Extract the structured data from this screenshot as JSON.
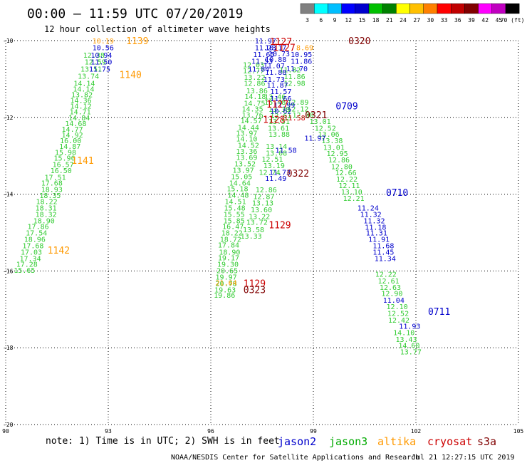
{
  "header": {
    "title": "00:00 – 11:59 UTC 07/20/2019",
    "subtitle": "12 hour collection of altimeter wave heights"
  },
  "color_scale": {
    "ticks": [
      "3",
      "6",
      "9",
      "12",
      "15",
      "18",
      "21",
      "24",
      "27",
      "30",
      "33",
      "36",
      "39",
      "42",
      "45",
      "70 (ft)"
    ],
    "colors": [
      "#808080",
      "#00ffff",
      "#00bfff",
      "#0000ff",
      "#0000cd",
      "#00c000",
      "#008000",
      "#ffff00",
      "#ffc000",
      "#ff8000",
      "#ff0000",
      "#c00000",
      "#800000",
      "#ff00ff",
      "#c000c0",
      "#000000"
    ]
  },
  "footer": {
    "note": "note: 1) Time is in UTC; 2) SWH is in feet",
    "satellites": [
      {
        "name": "jason2",
        "color": "#0000cc"
      },
      {
        "name": "jason3",
        "color": "#00aa00"
      },
      {
        "name": "altika",
        "color": "#ff9900"
      },
      {
        "name": "cryosat",
        "color": "#cc0000"
      },
      {
        "name": "s3a",
        "color": "#800000"
      }
    ],
    "credit": "NOAA/NESDIS Center for Satellite Applications and Research",
    "timestamp": "Jul 21 12:27:15 UTC 2019"
  },
  "chart_data": {
    "type": "scatter",
    "title": "00:00 – 11:59 UTC 07/20/2019",
    "subtitle": "12 hour collection of altimeter wave heights",
    "xlim": [
      90,
      105
    ],
    "ylim": [
      -20,
      -10
    ],
    "x_ticks": [
      "90",
      "93",
      "96",
      "99",
      "102",
      "105"
    ],
    "y_ticks": [
      "-10",
      "-12",
      "-14",
      "-16",
      "-18",
      "-20"
    ],
    "grid": true,
    "legend_position": "bottom",
    "series": [
      {
        "name": "jason3",
        "color": "#33cc33",
        "points": [
          [
            92.58,
            -10.37,
            "12.38"
          ],
          [
            92.62,
            -10.55,
            "12.59"
          ],
          [
            92.5,
            -10.73,
            "13.51"
          ],
          [
            92.42,
            -10.92,
            "13.74"
          ],
          [
            92.3,
            -11.1,
            "14.14"
          ],
          [
            92.28,
            -11.25,
            "14.14"
          ],
          [
            92.23,
            -11.4,
            "13.82"
          ],
          [
            92.2,
            -11.55,
            "14.36"
          ],
          [
            92.2,
            -11.7,
            "14.12"
          ],
          [
            92.18,
            -11.85,
            "14.71"
          ],
          [
            92.15,
            -12.0,
            "14.84"
          ],
          [
            92.05,
            -12.15,
            "14.68"
          ],
          [
            91.95,
            -12.3,
            "14.77"
          ],
          [
            91.95,
            -12.45,
            "14.92"
          ],
          [
            91.9,
            -12.6,
            "16.00"
          ],
          [
            91.88,
            -12.75,
            "14.87"
          ],
          [
            91.75,
            -12.9,
            "15.98"
          ],
          [
            91.72,
            -13.05,
            "15.90"
          ],
          [
            91.68,
            -13.22,
            "16.57"
          ],
          [
            91.62,
            -13.38,
            "16.50"
          ],
          [
            91.45,
            -13.55,
            "17.51"
          ],
          [
            91.35,
            -13.7,
            "17.68"
          ],
          [
            91.35,
            -13.87,
            "18.93"
          ],
          [
            91.3,
            -14.03,
            "18.35"
          ],
          [
            91.2,
            -14.18,
            "18.22"
          ],
          [
            91.18,
            -14.35,
            "18.31"
          ],
          [
            91.18,
            -14.52,
            "18.32"
          ],
          [
            91.12,
            -14.68,
            "18.90"
          ],
          [
            90.95,
            -14.83,
            "17.86"
          ],
          [
            90.9,
            -15.0,
            "17.54"
          ],
          [
            90.85,
            -15.17,
            "18.96"
          ],
          [
            90.8,
            -15.33,
            "17.68"
          ],
          [
            90.75,
            -15.5,
            "17.03"
          ],
          [
            90.72,
            -15.67,
            "17.34"
          ],
          [
            90.62,
            -15.82,
            "17.28"
          ],
          [
            90.55,
            -15.97,
            "15.65"
          ],
          [
            97.25,
            -10.62,
            "12.03"
          ],
          [
            97.25,
            -10.78,
            "12.77"
          ],
          [
            97.28,
            -10.95,
            "13.22"
          ],
          [
            97.28,
            -11.1,
            "12.86"
          ],
          [
            97.35,
            -11.3,
            "13.86"
          ],
          [
            97.3,
            -11.45,
            "14.18"
          ],
          [
            97.28,
            -11.62,
            "14.75"
          ],
          [
            97.22,
            -11.77,
            "14.35"
          ],
          [
            97.22,
            -11.93,
            "13.76"
          ],
          [
            97.18,
            -12.08,
            "14.57"
          ],
          [
            97.1,
            -12.25,
            "14.44"
          ],
          [
            97.05,
            -12.4,
            "13.97"
          ],
          [
            97.05,
            -12.55,
            "14.10"
          ],
          [
            97.1,
            -12.72,
            "14.52"
          ],
          [
            97.05,
            -12.88,
            "13.36"
          ],
          [
            97.05,
            -13.03,
            "13.69"
          ],
          [
            97.0,
            -13.2,
            "13.52"
          ],
          [
            96.95,
            -13.37,
            "13.97"
          ],
          [
            96.9,
            -13.53,
            "15.05"
          ],
          [
            96.85,
            -13.7,
            "14.64"
          ],
          [
            96.78,
            -13.85,
            "15.18"
          ],
          [
            96.8,
            -14.02,
            "14.48"
          ],
          [
            96.72,
            -14.18,
            "14.51"
          ],
          [
            96.7,
            -14.35,
            "15.48"
          ],
          [
            96.68,
            -14.52,
            "15.55"
          ],
          [
            96.68,
            -14.68,
            "15.85"
          ],
          [
            96.65,
            -14.83,
            "16.47"
          ],
          [
            96.62,
            -15.0,
            "18.22"
          ],
          [
            96.58,
            -15.17,
            "18.72"
          ],
          [
            96.52,
            -15.32,
            "17.84"
          ],
          [
            96.55,
            -15.5,
            "18.90"
          ],
          [
            96.52,
            -15.65,
            "19.17"
          ],
          [
            96.5,
            -15.82,
            "19.30"
          ],
          [
            96.48,
            -15.98,
            "20.65"
          ],
          [
            96.45,
            -16.15,
            "19.97"
          ],
          [
            96.45,
            -16.32,
            "20.78"
          ],
          [
            96.42,
            -16.48,
            "19.63"
          ],
          [
            96.4,
            -16.62,
            "19.86"
          ],
          [
            97.88,
            -11.46,
            "13.46"
          ],
          [
            97.88,
            -11.6,
            "15.48"
          ],
          [
            98.0,
            -11.78,
            "13.38"
          ],
          [
            98.05,
            -11.95,
            "12.61"
          ],
          [
            98.0,
            -12.1,
            "13.51"
          ],
          [
            97.98,
            -12.27,
            "13.61"
          ],
          [
            98.0,
            -12.43,
            "13.88"
          ],
          [
            97.92,
            -12.75,
            "13.14"
          ],
          [
            97.92,
            -12.92,
            "13.08"
          ],
          [
            97.8,
            -13.08,
            "12.51"
          ],
          [
            97.85,
            -13.25,
            "13.19"
          ],
          [
            97.72,
            -13.42,
            "12.74"
          ],
          [
            97.62,
            -13.88,
            "12.86"
          ],
          [
            97.55,
            -14.05,
            "12.87"
          ],
          [
            97.52,
            -14.22,
            "13.13"
          ],
          [
            97.48,
            -14.4,
            "13.60"
          ],
          [
            97.42,
            -14.57,
            "13.22"
          ],
          [
            97.35,
            -14.72,
            "13.72"
          ],
          [
            97.25,
            -14.92,
            "13.58"
          ],
          [
            97.18,
            -15.08,
            "13.33"
          ],
          [
            98.32,
            -10.75,
            "11.82"
          ],
          [
            98.45,
            -10.93,
            "11.86"
          ],
          [
            98.45,
            -11.1,
            "12.98"
          ],
          [
            98.55,
            -11.6,
            "12.89"
          ],
          [
            98.55,
            -11.77,
            "12.12"
          ],
          [
            98.7,
            -11.93,
            "12.90"
          ],
          [
            99.2,
            -12.1,
            "13.01"
          ],
          [
            99.35,
            -12.27,
            "12.52"
          ],
          [
            99.45,
            -12.43,
            "13.06"
          ],
          [
            99.55,
            -12.6,
            "13.38"
          ],
          [
            99.6,
            -12.77,
            "13.01"
          ],
          [
            99.7,
            -12.93,
            "12.95"
          ],
          [
            99.75,
            -13.1,
            "12.86"
          ],
          [
            99.83,
            -13.27,
            "12.80"
          ],
          [
            99.95,
            -13.43,
            "12.66"
          ],
          [
            99.98,
            -13.6,
            "12.22"
          ],
          [
            100.05,
            -13.77,
            "12.11"
          ],
          [
            100.12,
            -13.93,
            "13.10"
          ],
          [
            100.18,
            -14.1,
            "12.21"
          ],
          [
            101.12,
            -16.08,
            "12.22"
          ],
          [
            101.2,
            -16.25,
            "12.61"
          ],
          [
            101.25,
            -16.42,
            "12.63"
          ],
          [
            101.3,
            -16.58,
            "12.90"
          ],
          [
            101.45,
            -16.92,
            "12.10"
          ],
          [
            101.48,
            -17.1,
            "12.52"
          ],
          [
            101.5,
            -17.27,
            "12.42"
          ],
          [
            101.65,
            -17.6,
            "14.10"
          ],
          [
            101.72,
            -17.77,
            "13.43"
          ],
          [
            101.8,
            -17.93,
            "14.60"
          ],
          [
            101.85,
            -18.1,
            "13.77"
          ]
        ]
      },
      {
        "name": "jason2",
        "color": "#0000cc",
        "points": [
          [
            92.85,
            -10.18,
            "10.56"
          ],
          [
            92.8,
            -10.37,
            "10.94"
          ],
          [
            92.8,
            -10.55,
            "11.50"
          ],
          [
            92.75,
            -10.73,
            "11.75"
          ],
          [
            97.6,
            -10.0,
            "11.97"
          ],
          [
            97.6,
            -10.18,
            "11.23"
          ],
          [
            97.55,
            -10.35,
            "11.65"
          ],
          [
            97.5,
            -10.53,
            "11.53"
          ],
          [
            97.4,
            -10.73,
            "11.84"
          ],
          [
            97.9,
            -10.18,
            "10.17"
          ],
          [
            98.0,
            -10.33,
            "10.73"
          ],
          [
            97.9,
            -10.48,
            "10.88"
          ],
          [
            97.85,
            -10.65,
            "11.07"
          ],
          [
            97.9,
            -10.82,
            "11.88"
          ],
          [
            97.85,
            -11.0,
            "11.73"
          ],
          [
            97.95,
            -11.15,
            "11.87"
          ],
          [
            98.05,
            -11.32,
            "11.57"
          ],
          [
            98.05,
            -11.5,
            "11.66"
          ],
          [
            98.15,
            -11.67,
            "11.99"
          ],
          [
            98.05,
            -11.83,
            "10.62"
          ],
          [
            98.65,
            -10.35,
            "10.95"
          ],
          [
            98.65,
            -10.53,
            "11.86"
          ],
          [
            98.52,
            -10.72,
            "11.70"
          ],
          [
            99.05,
            -12.53,
            "11.97"
          ],
          [
            98.2,
            -12.85,
            "11.58"
          ],
          [
            98.02,
            -13.42,
            "11.73"
          ],
          [
            97.9,
            -13.58,
            "11.49"
          ],
          [
            100.6,
            -14.35,
            "11.24"
          ],
          [
            100.68,
            -14.52,
            "11.32"
          ],
          [
            100.78,
            -14.68,
            "11.32"
          ],
          [
            100.82,
            -14.85,
            "11.18"
          ],
          [
            100.85,
            -15.0,
            "11.31"
          ],
          [
            100.92,
            -15.17,
            "11.91"
          ],
          [
            101.05,
            -15.33,
            "11.68"
          ],
          [
            101.05,
            -15.5,
            "11.45"
          ],
          [
            101.1,
            -15.67,
            "11.34"
          ],
          [
            101.35,
            -16.75,
            "11.04"
          ],
          [
            101.82,
            -17.43,
            "11.93"
          ]
        ]
      },
      {
        "name": "altika",
        "color": "#ff9900",
        "points": [
          [
            92.85,
            -10.0,
            "10.19"
          ],
          [
            98.75,
            -10.18,
            "8.69"
          ],
          [
            96.45,
            -16.3,
            "21.64"
          ]
        ]
      },
      {
        "name": "cryosat",
        "color": "#cc0000",
        "points": [
          [
            98.45,
            -12.0,
            "11.58"
          ]
        ]
      }
    ],
    "track_labels": [
      {
        "text": "1139",
        "color": "#ff9900",
        "x": 93.85,
        "y": -10.0
      },
      {
        "text": "1140",
        "color": "#ff9900",
        "x": 93.65,
        "y": -10.88
      },
      {
        "text": "1141",
        "color": "#ff9900",
        "x": 92.25,
        "y": -13.12
      },
      {
        "text": "1142",
        "color": "#ff9900",
        "x": 91.55,
        "y": -15.45
      },
      {
        "text": "1127",
        "color": "#cc0000",
        "x": 98.05,
        "y": -10.02
      },
      {
        "text": "1127",
        "color": "#cc0000",
        "x": 98.15,
        "y": -10.18
      },
      {
        "text": "1127",
        "color": "#cc0000",
        "x": 97.95,
        "y": -11.65
      },
      {
        "text": "1128",
        "color": "#cc0000",
        "x": 97.85,
        "y": -12.05
      },
      {
        "text": "1129",
        "color": "#cc0000",
        "x": 98.02,
        "y": -14.8
      },
      {
        "text": "1129",
        "color": "#cc0000",
        "x": 97.28,
        "y": -16.32
      },
      {
        "text": "0320",
        "color": "#800000",
        "x": 100.35,
        "y": -10.0
      },
      {
        "text": "0321",
        "color": "#800000",
        "x": 99.08,
        "y": -11.93
      },
      {
        "text": "0322",
        "color": "#800000",
        "x": 98.55,
        "y": -13.45
      },
      {
        "text": "0323",
        "color": "#800000",
        "x": 97.28,
        "y": -16.48
      },
      {
        "text": "0709",
        "color": "#0000cc",
        "x": 99.98,
        "y": -11.7
      },
      {
        "text": "0710",
        "color": "#0000cc",
        "x": 101.45,
        "y": -13.95
      },
      {
        "text": "0711",
        "color": "#0000cc",
        "x": 102.68,
        "y": -17.05
      }
    ]
  }
}
